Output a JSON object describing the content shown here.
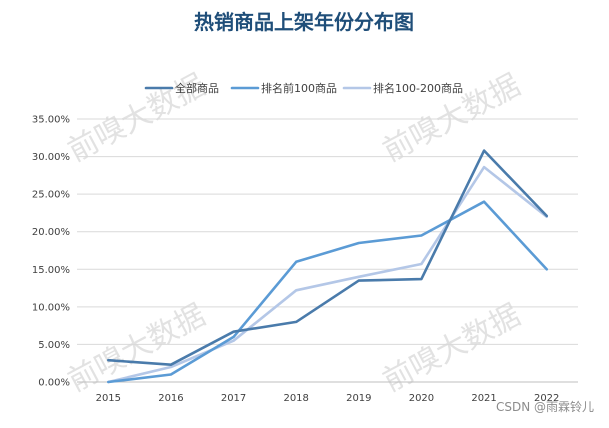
{
  "chart_data": {
    "type": "line",
    "title": "热销商品上架年份分布图",
    "categories": [
      "2015",
      "2016",
      "2017",
      "2018",
      "2019",
      "2020",
      "2021",
      "2022"
    ],
    "series": [
      {
        "name": "全部商品",
        "color": "#4a7bab",
        "values": [
          2.9,
          2.3,
          6.7,
          8.0,
          13.5,
          13.7,
          30.8,
          22.1
        ]
      },
      {
        "name": "排名前100商品",
        "color": "#5b9bd5",
        "values": [
          0.0,
          1.0,
          6.0,
          16.0,
          18.5,
          19.5,
          24.0,
          15.0
        ]
      },
      {
        "name": "排名100-200商品",
        "color": "#b4c7e7",
        "values": [
          0.0,
          2.0,
          5.5,
          12.2,
          14.0,
          15.7,
          28.6,
          22.0
        ]
      }
    ],
    "ylim": [
      0,
      35
    ],
    "yticks": [
      "0.00%",
      "5.00%",
      "10.00%",
      "15.00%",
      "20.00%",
      "25.00%",
      "30.00%",
      "35.00%"
    ],
    "ytick_values": [
      0,
      5,
      10,
      15,
      20,
      25,
      30,
      35
    ],
    "legend": "top",
    "grid": true
  },
  "watermark": "前嗅大数据",
  "credit": "CSDN @雨霖铃儿"
}
